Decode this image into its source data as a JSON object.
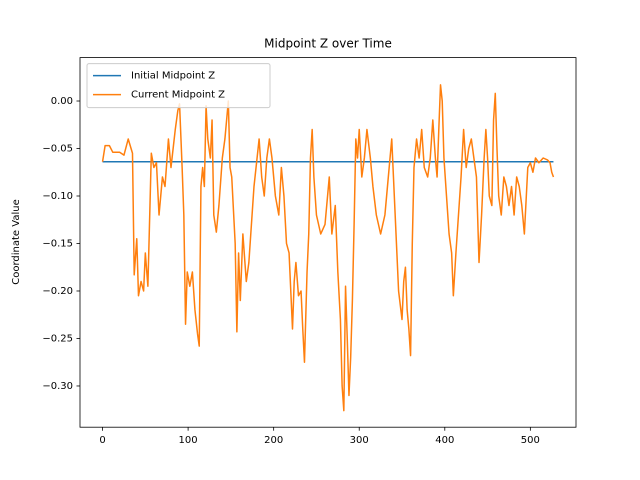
{
  "chart_data": {
    "type": "line",
    "title": "Midpoint Z over Time",
    "ylabel": "Coordinate Value",
    "xlim": [
      -26.35,
      553.35
    ],
    "ylim": [
      -0.3434,
      0.0457
    ],
    "xticks": [
      0,
      100,
      200,
      300,
      400,
      500
    ],
    "yticks": [
      {
        "value": 0,
        "label": "0.00"
      },
      {
        "value": -0.05,
        "label": "−0.05"
      },
      {
        "value": -0.1,
        "label": "−0.10"
      },
      {
        "value": -0.15,
        "label": "−0.15"
      },
      {
        "value": -0.2,
        "label": "−0.20"
      },
      {
        "value": -0.25,
        "label": "−0.25"
      },
      {
        "value": -0.3,
        "label": "−0.30"
      }
    ],
    "legend": "upper left",
    "grid": false,
    "series": [
      {
        "name": "Initial Midpoint Z",
        "color": "#1f77b4",
        "x": [
          0,
          527
        ],
        "values": [
          -0.064,
          -0.064
        ]
      },
      {
        "name": "Current Midpoint Z",
        "color": "#ff7f0e",
        "x": [
          0,
          3,
          8,
          12,
          20,
          25,
          30,
          35,
          37,
          40,
          42,
          45,
          48,
          50,
          53,
          57,
          60,
          63,
          66,
          70,
          73,
          77,
          80,
          85,
          88,
          90,
          93,
          95,
          97,
          99,
          102,
          105,
          108,
          111,
          113,
          115,
          117,
          119,
          121,
          123,
          126,
          128,
          130,
          133,
          136,
          140,
          143,
          145,
          147,
          149,
          151,
          155,
          157,
          159,
          161,
          164,
          168,
          171,
          174,
          177,
          180,
          183,
          186,
          189,
          192,
          195,
          198,
          202,
          206,
          209,
          212,
          215,
          218,
          220,
          222,
          224,
          226,
          229,
          232,
          234,
          236,
          239,
          241,
          243,
          245,
          247,
          250,
          255,
          260,
          265,
          268,
          272,
          275,
          278,
          280,
          282,
          284,
          286,
          288,
          290,
          292,
          294,
          296,
          298,
          300,
          303,
          306,
          309,
          313,
          316,
          320,
          325,
          330,
          333,
          336,
          338,
          341,
          344,
          346,
          348,
          350,
          352,
          354,
          356,
          358,
          360,
          362,
          364,
          367,
          370,
          373,
          376,
          380,
          383,
          386,
          389,
          391,
          393,
          395,
          397,
          399,
          402,
          405,
          408,
          410,
          413,
          416,
          419,
          422,
          425,
          428,
          431,
          434,
          437,
          440,
          443,
          446,
          448,
          450,
          452,
          455,
          457,
          459,
          461,
          463,
          466,
          469,
          472,
          475,
          478,
          481,
          484,
          487,
          490,
          493,
          497,
          500,
          503,
          506,
          510,
          515,
          520,
          523,
          525,
          527
        ],
        "values": [
          -0.064,
          -0.047,
          -0.047,
          -0.054,
          -0.054,
          -0.057,
          -0.04,
          -0.055,
          -0.183,
          -0.145,
          -0.205,
          -0.19,
          -0.2,
          -0.16,
          -0.195,
          -0.055,
          -0.07,
          -0.065,
          -0.12,
          -0.08,
          -0.09,
          -0.04,
          -0.07,
          -0.03,
          -0.01,
          -0.003,
          -0.07,
          -0.12,
          -0.235,
          -0.18,
          -0.195,
          -0.18,
          -0.22,
          -0.245,
          -0.258,
          -0.09,
          -0.07,
          -0.09,
          -0.005,
          -0.04,
          -0.06,
          -0.02,
          -0.12,
          -0.138,
          -0.11,
          -0.06,
          -0.04,
          -0.02,
          0.0,
          -0.07,
          -0.08,
          -0.15,
          -0.243,
          -0.16,
          -0.21,
          -0.14,
          -0.19,
          -0.17,
          -0.13,
          -0.09,
          -0.065,
          -0.04,
          -0.08,
          -0.1,
          -0.06,
          -0.04,
          -0.06,
          -0.1,
          -0.12,
          -0.07,
          -0.1,
          -0.15,
          -0.16,
          -0.2,
          -0.24,
          -0.19,
          -0.17,
          -0.205,
          -0.2,
          -0.24,
          -0.275,
          -0.18,
          -0.14,
          -0.06,
          -0.03,
          -0.08,
          -0.12,
          -0.14,
          -0.13,
          -0.08,
          -0.14,
          -0.11,
          -0.18,
          -0.23,
          -0.3,
          -0.326,
          -0.195,
          -0.25,
          -0.31,
          -0.27,
          -0.21,
          -0.13,
          -0.04,
          -0.06,
          -0.03,
          -0.08,
          -0.06,
          -0.03,
          -0.06,
          -0.09,
          -0.12,
          -0.14,
          -0.12,
          -0.09,
          -0.06,
          -0.04,
          -0.1,
          -0.16,
          -0.2,
          -0.215,
          -0.23,
          -0.19,
          -0.175,
          -0.22,
          -0.24,
          -0.268,
          -0.15,
          -0.07,
          -0.04,
          -0.06,
          -0.03,
          -0.07,
          -0.08,
          -0.06,
          -0.02,
          -0.06,
          -0.08,
          -0.03,
          0.017,
          0.0,
          -0.06,
          -0.1,
          -0.14,
          -0.16,
          -0.205,
          -0.16,
          -0.12,
          -0.08,
          -0.03,
          -0.07,
          -0.05,
          -0.04,
          -0.06,
          -0.08,
          -0.17,
          -0.12,
          -0.06,
          -0.03,
          -0.06,
          -0.1,
          -0.11,
          -0.02,
          0.008,
          -0.05,
          -0.1,
          -0.12,
          -0.08,
          -0.09,
          -0.11,
          -0.09,
          -0.12,
          -0.08,
          -0.09,
          -0.11,
          -0.14,
          -0.07,
          -0.065,
          -0.075,
          -0.06,
          -0.065,
          -0.06,
          -0.062,
          -0.065,
          -0.075,
          -0.08
        ]
      }
    ]
  }
}
